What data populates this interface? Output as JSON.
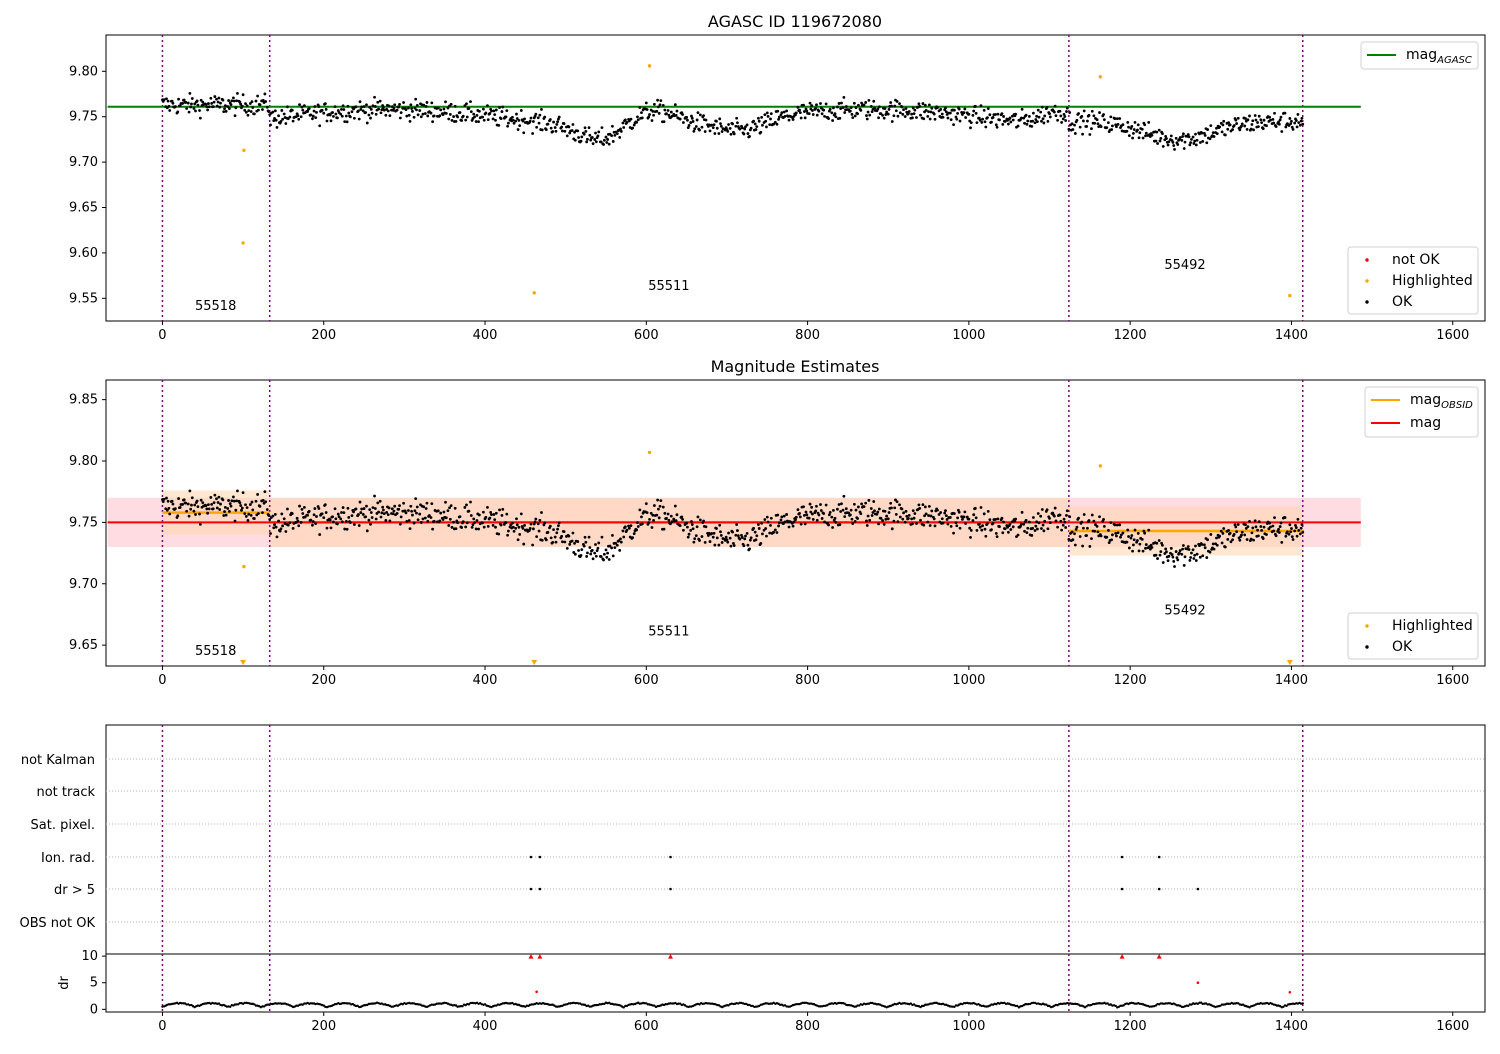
{
  "colors": {
    "ok": "#000000",
    "highlighted": "#ffa500",
    "not_ok": "#ff0000",
    "agasc_line": "#008000",
    "obsid_line": "#ffa500",
    "mag_line": "#ff0000",
    "obs_boundary": "#800080",
    "band_orange": "#ffd7b4",
    "band_pink": "#ffd6dc"
  },
  "chart_data": [
    {
      "id": "agasc_panel",
      "type": "scatter",
      "title": "AGASC ID 119672080",
      "xlim": [
        -70,
        1640
      ],
      "ylim": [
        9.525,
        9.84
      ],
      "xticks": [
        "0",
        "200",
        "400",
        "600",
        "800",
        "1000",
        "1200",
        "1400",
        "1600"
      ],
      "yticks": [
        "9.55",
        "9.60",
        "9.65",
        "9.70",
        "9.75",
        "9.80"
      ],
      "agasc_mag": 9.761,
      "observation_boundaries": [
        0,
        133,
        1124,
        1414
      ],
      "observation_labels": [
        {
          "text": "55518",
          "x": 66,
          "y": 9.537
        },
        {
          "text": "55511",
          "x": 628,
          "y": 9.559
        },
        {
          "text": "55492",
          "x": 1268,
          "y": 9.582
        }
      ],
      "highlighted_points": [
        [
          101,
          9.713
        ],
        [
          100,
          9.611
        ],
        [
          461,
          9.556
        ],
        [
          604,
          9.806
        ],
        [
          1163,
          9.794
        ],
        [
          1398,
          9.553
        ]
      ],
      "legend_lines": [
        {
          "label": "mag",
          "subscript": "AGASC"
        }
      ],
      "legend_markers": [
        {
          "label": "not OK"
        },
        {
          "label": "Highlighted"
        },
        {
          "label": "OK"
        }
      ]
    },
    {
      "id": "mag_estimates_panel",
      "type": "scatter",
      "title": "Magnitude Estimates",
      "xlim": [
        -70,
        1640
      ],
      "ylim": [
        9.633,
        9.866
      ],
      "xticks": [
        "0",
        "200",
        "400",
        "600",
        "800",
        "1000",
        "1200",
        "1400",
        "1600"
      ],
      "yticks": [
        "9.65",
        "9.70",
        "9.75",
        "9.80",
        "9.85"
      ],
      "mag": 9.75,
      "mag_band": [
        9.73,
        9.77
      ],
      "mag_line_end": 1486,
      "obsid_segments": [
        {
          "x": [
            0,
            133
          ],
          "mag": 9.758,
          "band": [
            9.74,
            9.776
          ]
        },
        {
          "x": [
            133,
            1124
          ],
          "mag": 9.75,
          "band": [
            9.73,
            9.77
          ]
        },
        {
          "x": [
            1124,
            1414
          ],
          "mag": 9.743,
          "band": [
            9.723,
            9.763
          ]
        }
      ],
      "observation_labels": [
        {
          "text": "55518",
          "x": 66,
          "y": 9.642
        },
        {
          "text": "55511",
          "x": 628,
          "y": 9.658
        },
        {
          "text": "55492",
          "x": 1268,
          "y": 9.675
        }
      ],
      "highlighted_points": [
        [
          101,
          9.714
        ],
        [
          604,
          9.807
        ],
        [
          1163,
          9.796
        ]
      ],
      "offscale_markers_x": [
        100,
        461,
        1398
      ],
      "legend_lines": [
        {
          "label": "mag",
          "subscript": "OBSID"
        },
        {
          "label": "mag",
          "subscript": ""
        }
      ],
      "legend_markers": [
        {
          "label": "Highlighted"
        },
        {
          "label": "OK"
        }
      ]
    },
    {
      "id": "flags_panel",
      "type": "scatter",
      "xticks": [
        "0",
        "200",
        "400",
        "600",
        "800",
        "1000",
        "1200",
        "1400",
        "1600"
      ],
      "rows": [
        "not Kalman",
        "not track",
        "Sat. pixel.",
        "Ion. rad.",
        "dr > 5",
        "OBS not OK"
      ],
      "flagged": {
        "Ion. rad.": [
          457,
          468,
          630,
          1190,
          1236
        ],
        "dr > 5": [
          457,
          468,
          630,
          1190,
          1236,
          1284
        ]
      }
    },
    {
      "id": "dr_panel",
      "type": "scatter",
      "ylabel": "dr",
      "ylim": [
        -0.5,
        10.4
      ],
      "yticks": [
        "0",
        "5",
        "10"
      ],
      "xticks": [
        "0",
        "200",
        "400",
        "600",
        "800",
        "1000",
        "1200",
        "1400",
        "1600"
      ],
      "capped_points_x": [
        457,
        468,
        630,
        1190,
        1236
      ],
      "outlier_points": [
        [
          464,
          3.3
        ],
        [
          1284,
          5.0
        ],
        [
          1398,
          3.2
        ]
      ]
    }
  ]
}
